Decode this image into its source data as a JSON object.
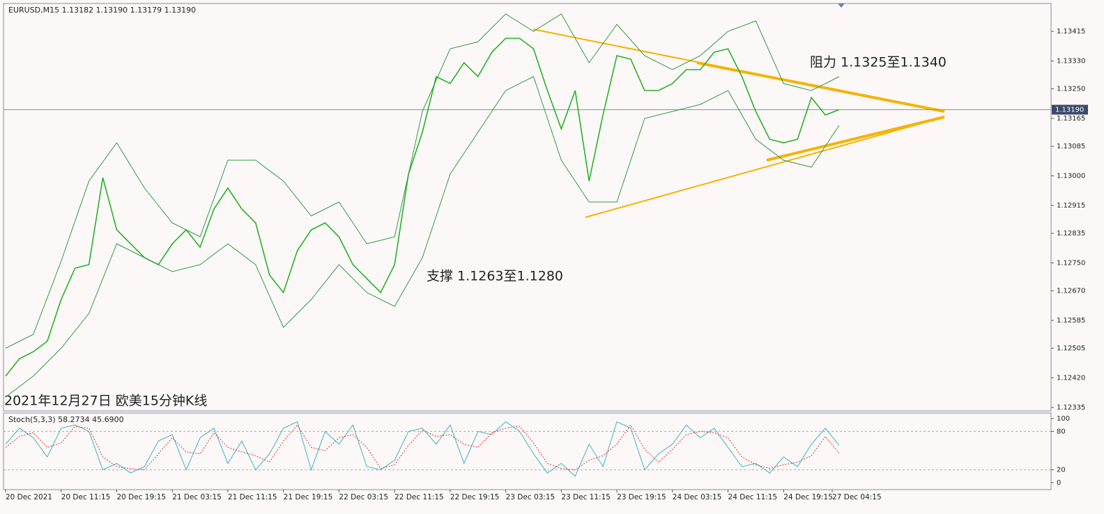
{
  "chart_data": [
    {
      "type": "line",
      "title": "EURUSD,M15  1.13182 1.13190 1.13179 1.13190",
      "x": [
        0,
        8,
        16,
        24,
        32,
        40,
        48,
        56,
        64,
        72,
        80,
        88,
        96,
        104,
        112,
        120,
        128,
        136,
        144,
        152,
        160,
        168,
        176,
        184,
        192,
        200,
        208,
        216,
        224,
        232,
        240,
        248,
        256,
        264,
        272,
        280,
        288,
        296,
        304,
        312,
        320,
        328,
        336,
        344,
        352,
        360,
        368,
        376,
        384,
        392,
        400,
        408,
        416,
        424,
        432,
        440,
        448,
        456,
        464,
        472,
        480
      ],
      "series": [
        {
          "name": "EURUSD",
          "color": "#27b327",
          "values": [
            1.12425,
            1.12475,
            1.12495,
            1.12525,
            1.12645,
            1.12735,
            1.12745,
            1.12995,
            1.12845,
            1.12805,
            1.12765,
            1.12745,
            1.12805,
            1.12845,
            1.12795,
            1.12905,
            1.12965,
            1.12905,
            1.12865,
            1.12715,
            1.12665,
            1.12785,
            1.12845,
            1.12865,
            1.12825,
            1.12745,
            1.12705,
            1.12665,
            1.12745,
            1.13005,
            1.13125,
            1.13285,
            1.13265,
            1.13325,
            1.13285,
            1.13355,
            1.13395,
            1.13395,
            1.13365,
            1.13245,
            1.13135,
            1.13245,
            1.12985,
            1.13175,
            1.13345,
            1.13335,
            1.13245,
            1.13245,
            1.13265,
            1.13305,
            1.13305,
            1.13355,
            1.13365,
            1.13285,
            1.13185,
            1.13105,
            1.13095,
            1.13105,
            1.13225,
            1.13175,
            1.1319
          ]
        },
        {
          "name": "BB upper",
          "color": "#2e9b48",
          "x": [
            0,
            16,
            32,
            48,
            64,
            80,
            96,
            112,
            128,
            144,
            160,
            176,
            192,
            208,
            224,
            240,
            256,
            272,
            288,
            304,
            320,
            336,
            352,
            368,
            384,
            400,
            416,
            432,
            448,
            464,
            480
          ],
          "values": [
            1.12505,
            1.12545,
            1.12755,
            1.12985,
            1.13095,
            1.12965,
            1.12865,
            1.12825,
            1.13045,
            1.13045,
            1.12985,
            1.12885,
            1.12925,
            1.12805,
            1.12825,
            1.13185,
            1.13365,
            1.13385,
            1.13465,
            1.13415,
            1.13465,
            1.13325,
            1.13435,
            1.13345,
            1.13305,
            1.13345,
            1.13415,
            1.13445,
            1.13265,
            1.13245,
            1.13285
          ]
        },
        {
          "name": "BB lower",
          "color": "#2e9b48",
          "x": [
            0,
            16,
            32,
            48,
            64,
            80,
            96,
            112,
            128,
            144,
            160,
            176,
            192,
            208,
            224,
            240,
            256,
            272,
            288,
            304,
            320,
            336,
            352,
            368,
            384,
            400,
            416,
            432,
            448,
            464,
            480
          ],
          "values": [
            1.12365,
            1.12425,
            1.12505,
            1.12605,
            1.12805,
            1.12765,
            1.12725,
            1.12745,
            1.12805,
            1.12745,
            1.12565,
            1.12645,
            1.12745,
            1.12665,
            1.12625,
            1.12765,
            1.13005,
            1.13125,
            1.13245,
            1.13285,
            1.13045,
            1.12925,
            1.12925,
            1.13165,
            1.13185,
            1.13205,
            1.13245,
            1.13105,
            1.13045,
            1.13025,
            1.13145
          ]
        }
      ],
      "last_price": {
        "value": 1.1319,
        "label": "1.13190"
      },
      "annotations": [
        "阻力 1.1325至1.1340",
        "支撑 1.1263至1.1280",
        "2021年12月27日 欧美15分钟K线"
      ],
      "xlim": [
        -1.2,
        602
      ],
      "ylim": [
        1.13495,
        1.12325
      ],
      "yticks": [
        {
          "value": 1.13415,
          "label": "1.13415"
        },
        {
          "value": 1.1333,
          "label": "1.13330"
        },
        {
          "value": 1.1325,
          "label": "1.13250"
        },
        {
          "value": 1.13165,
          "label": "1.13165"
        },
        {
          "value": 1.13085,
          "label": "1.13085"
        },
        {
          "value": 1.13,
          "label": "1.13000"
        },
        {
          "value": 1.12915,
          "label": "1.12915"
        },
        {
          "value": 1.12835,
          "label": "1.12835"
        },
        {
          "value": 1.1275,
          "label": "1.12750"
        },
        {
          "value": 1.1267,
          "label": "1.12670"
        },
        {
          "value": 1.12585,
          "label": "1.12585"
        },
        {
          "value": 1.12505,
          "label": "1.12505"
        },
        {
          "value": 1.1242,
          "label": "1.12420"
        },
        {
          "value": 1.12335,
          "label": "1.12335"
        }
      ]
    },
    {
      "type": "line",
      "title": "Stoch(5,3,3) 58.2734 45.6900",
      "x": [
        0,
        8,
        16,
        24,
        32,
        40,
        48,
        56,
        64,
        72,
        80,
        88,
        96,
        104,
        112,
        120,
        128,
        136,
        144,
        152,
        160,
        168,
        176,
        184,
        192,
        200,
        208,
        216,
        224,
        232,
        240,
        248,
        256,
        264,
        272,
        280,
        288,
        296,
        304,
        312,
        320,
        328,
        336,
        344,
        352,
        360,
        368,
        376,
        384,
        392,
        400,
        408,
        416,
        424,
        432,
        440,
        448,
        456,
        464,
        472,
        480
      ],
      "series": [
        {
          "name": "%K",
          "color": "#3bb3c3",
          "values": [
            60,
            85,
            70,
            40,
            85,
            90,
            80,
            20,
            30,
            15,
            25,
            65,
            75,
            20,
            70,
            85,
            30,
            65,
            20,
            45,
            85,
            95,
            20,
            80,
            60,
            90,
            25,
            20,
            35,
            80,
            85,
            60,
            90,
            30,
            80,
            75,
            95,
            80,
            45,
            15,
            30,
            10,
            60,
            25,
            95,
            85,
            20,
            45,
            60,
            90,
            70,
            85,
            55,
            25,
            30,
            15,
            40,
            25,
            60,
            85,
            58.2734
          ]
        },
        {
          "name": "%D",
          "color": "#e03030",
          "values": [
            55,
            72,
            78,
            55,
            62,
            88,
            85,
            40,
            25,
            22,
            20,
            45,
            70,
            48,
            45,
            78,
            55,
            48,
            42,
            32,
            65,
            90,
            55,
            50,
            70,
            75,
            55,
            22,
            28,
            58,
            82,
            72,
            75,
            60,
            55,
            78,
            85,
            88,
            62,
            30,
            22,
            20,
            35,
            42,
            60,
            90,
            52,
            32,
            52,
            75,
            80,
            78,
            70,
            40,
            28,
            22,
            28,
            32,
            42,
            72,
            45.69
          ]
        }
      ],
      "levels": [
        80,
        20
      ],
      "xlim": [
        -1.2,
        602
      ],
      "ylim": [
        108.7,
        -10.9
      ],
      "yticks": [
        100,
        80,
        20,
        0
      ],
      "xticks": [
        {
          "value": 0,
          "label": "20 Dec 2021"
        },
        {
          "value": 32,
          "label": "20 Dec 11:15"
        },
        {
          "value": 64,
          "label": "20 Dec 19:15"
        },
        {
          "value": 96,
          "label": "21 Dec 03:15"
        },
        {
          "value": 128,
          "label": "21 Dec 11:15"
        },
        {
          "value": 160,
          "label": "21 Dec 19:15"
        },
        {
          "value": 192,
          "label": "22 Dec 03:15"
        },
        {
          "value": 224,
          "label": "22 Dec 11:15"
        },
        {
          "value": 256,
          "label": "22 Dec 19:15"
        },
        {
          "value": 288,
          "label": "23 Dec 03:15"
        },
        {
          "value": 320,
          "label": "23 Dec 11:15"
        },
        {
          "value": 352,
          "label": "23 Dec 19:15"
        },
        {
          "value": 384,
          "label": "24 Dec 03:15"
        },
        {
          "value": 416,
          "label": "24 Dec 11:15"
        },
        {
          "value": 448,
          "label": "24 Dec 19:15"
        },
        {
          "value": 476,
          "label": "27 Dec 04:15"
        }
      ]
    }
  ]
}
